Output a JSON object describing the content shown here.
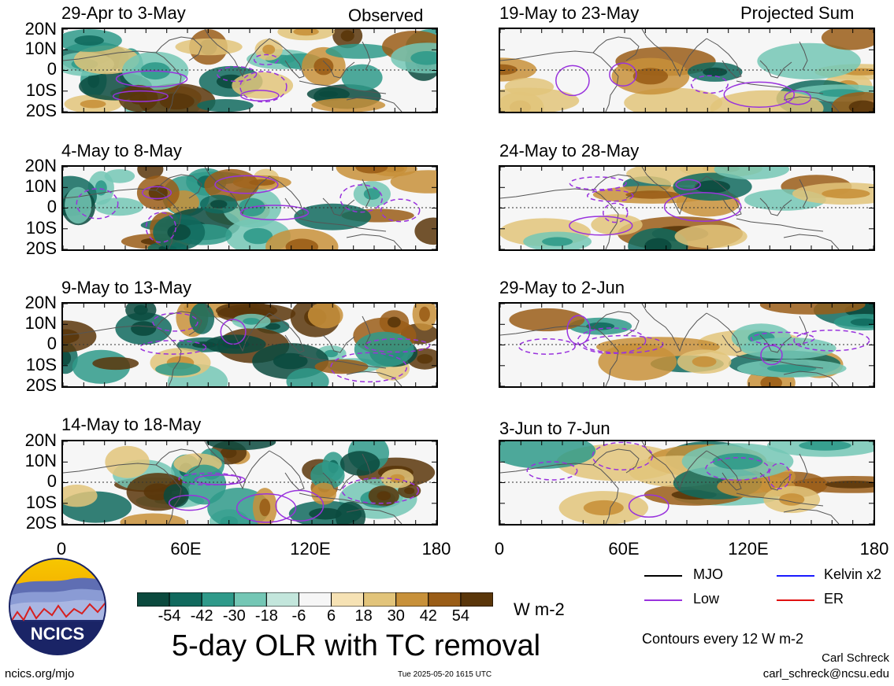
{
  "left_column": {
    "top_tag": "Observed",
    "panels": [
      {
        "period": "29-Apr to 3-May"
      },
      {
        "period": "4-May to 8-May"
      },
      {
        "period": "9-May to 13-May"
      },
      {
        "period": "14-May to 18-May"
      }
    ]
  },
  "right_column": {
    "top_tag": "Projected Sum",
    "panels": [
      {
        "period": "19-May to 23-May"
      },
      {
        "period": "24-May to 28-May"
      },
      {
        "period": "29-May to 2-Jun"
      },
      {
        "period": "3-Jun to 7-Jun"
      }
    ]
  },
  "lat_labels": [
    "20N",
    "10N",
    "0",
    "10S",
    "20S"
  ],
  "lon_labels": [
    "0",
    "60E",
    "120E",
    "180"
  ],
  "colorbar": {
    "colors": [
      "#0b4a3e",
      "#116a5e",
      "#2f9a8a",
      "#74c7b5",
      "#c3e6dc",
      "#f6f6f6",
      "#f6e2b4",
      "#e2c47a",
      "#c8913a",
      "#9a5d17",
      "#5a360a"
    ],
    "labels": [
      "-54",
      "-42",
      "-30",
      "-18",
      "-6",
      "6",
      "18",
      "30",
      "42",
      "54"
    ],
    "unit": "W m-2"
  },
  "title": "5-day OLR with TC removal",
  "legend": {
    "mjo": {
      "label": "MJO",
      "color": "#000000"
    },
    "kelvin": {
      "label": "Kelvin x2",
      "color": "#1a1aff"
    },
    "low": {
      "label": "Low",
      "color": "#9933dd"
    },
    "er": {
      "label": "ER",
      "color": "#e01010"
    }
  },
  "contour_note": "Contours every 12 W m-2",
  "author": "Carl Schreck",
  "email": "carl_schreck@ncsu.edu",
  "url": "ncics.org/mjo",
  "timestamp": "Tue 2025-05-20 1615 UTC",
  "logo_text": "NCICS"
}
